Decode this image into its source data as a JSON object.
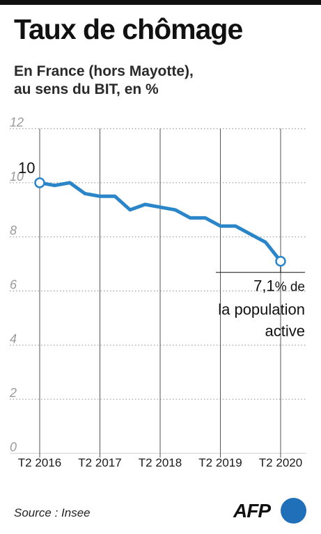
{
  "header": {
    "title": "Taux de chômage",
    "subtitle_line1": "En France (hors Mayotte),",
    "subtitle_line2": "au sens du BIT, en %"
  },
  "footer": {
    "source": "Source : Insee",
    "logo_text": "AFP"
  },
  "chart_data": {
    "type": "line",
    "x": [
      "T2 2016",
      "T3 2016",
      "T4 2016",
      "T1 2017",
      "T2 2017",
      "T3 2017",
      "T4 2017",
      "T1 2018",
      "T2 2018",
      "T3 2018",
      "T4 2018",
      "T1 2019",
      "T2 2019",
      "T3 2019",
      "T4 2019",
      "T1 2020",
      "T2 2020"
    ],
    "values": [
      10.0,
      9.9,
      10.0,
      9.6,
      9.5,
      9.5,
      9.0,
      9.2,
      9.1,
      9.0,
      8.7,
      8.7,
      8.4,
      8.4,
      8.1,
      7.8,
      7.1
    ],
    "x_tick_labels": [
      "T2 2016",
      "T2 2017",
      "T2 2018",
      "T2 2019",
      "T2 2020"
    ],
    "x_tick_indices": [
      0,
      4,
      8,
      12,
      16
    ],
    "y_ticks": [
      0,
      2,
      4,
      6,
      8,
      10,
      12
    ],
    "ylim": [
      0,
      12
    ],
    "grid": true,
    "start_label": "10",
    "end_annotation": {
      "value_text": "7,1",
      "unit_text": "% de",
      "line2": "la population",
      "line3": "active"
    },
    "line_color": "#2a86c8"
  }
}
